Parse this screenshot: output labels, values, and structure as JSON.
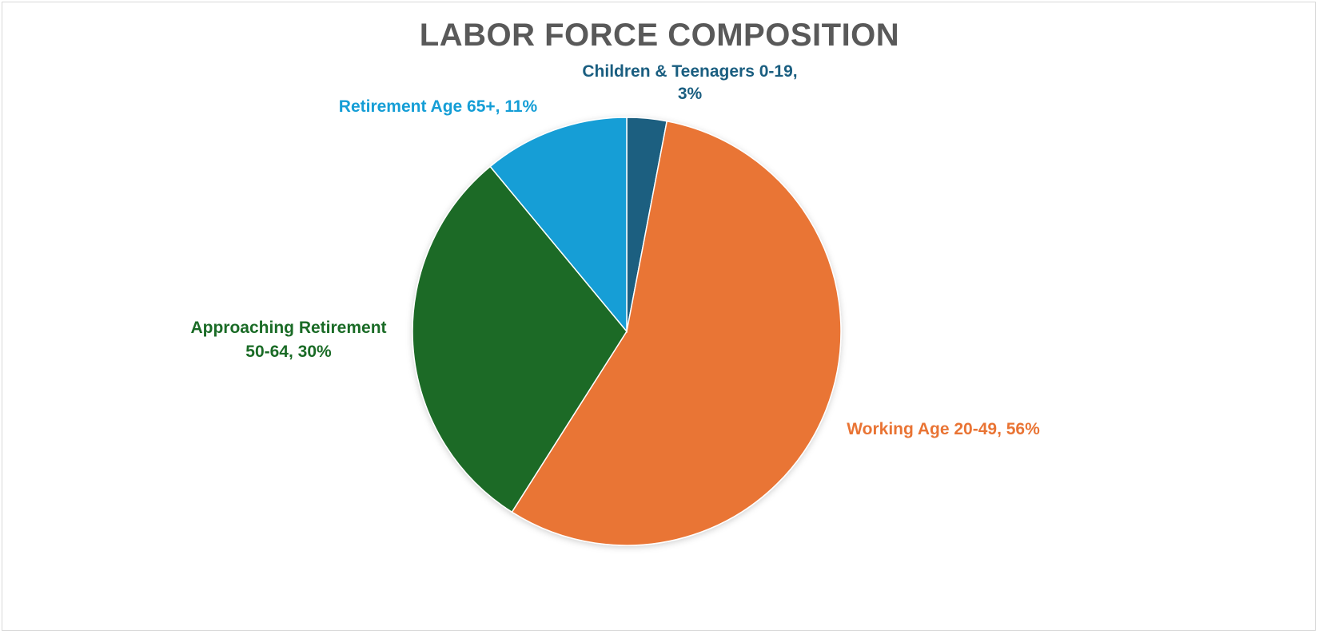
{
  "chart_data": {
    "type": "pie",
    "title": "LABOR FORCE COMPOSITION",
    "slices": [
      {
        "name": "Children & Teenagers 0-19",
        "value": 3,
        "label_lines": [
          "Children & Teenagers 0-19,",
          "3%"
        ],
        "color": "#1a5e80"
      },
      {
        "name": "Working Age 20-49",
        "value": 56,
        "label_lines": [
          "Working Age 20-49, 56%"
        ],
        "color": "#e97434"
      },
      {
        "name": "Approaching Retirement 50-64",
        "value": 30,
        "label_lines": [
          "Approaching Retirement",
          "50-64, 30%"
        ],
        "color": "#1a6b26"
      },
      {
        "name": "Retirement Age 65+",
        "value": 11,
        "label_lines": [
          "Retirement Age 65+, 11%"
        ],
        "color": "#159ed6"
      }
    ],
    "start_angle": "12 o'clock",
    "direction": "clockwise",
    "legend": "none",
    "data_labels": "outside"
  }
}
